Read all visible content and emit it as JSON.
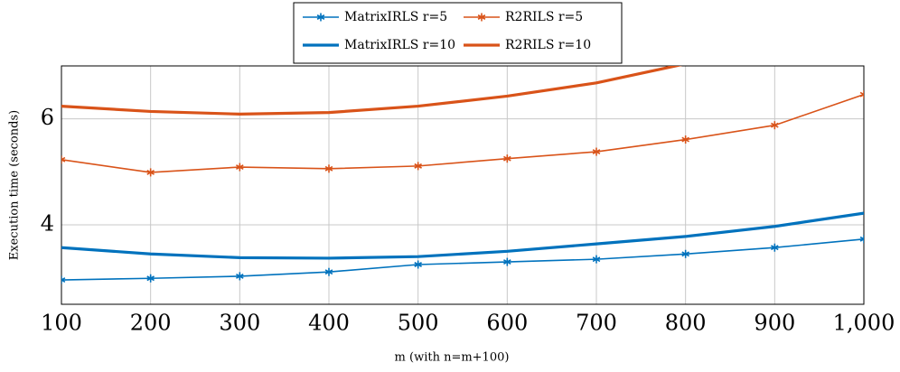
{
  "chart_data": {
    "type": "line",
    "xlabel": "m (with n=m+100)",
    "ylabel": "Execution time (seconds)",
    "x": [
      100,
      200,
      300,
      400,
      500,
      600,
      700,
      800,
      900,
      1000
    ],
    "series": [
      {
        "name": "MatrixIRLS r=5",
        "color": "#0072bd",
        "marker": "asterisk",
        "values": [
          2.96,
          2.99,
          3.03,
          3.11,
          3.25,
          3.3,
          3.35,
          3.45,
          3.57,
          3.73
        ]
      },
      {
        "name": "R2RILS r=5",
        "color": "#d95319",
        "marker": "asterisk",
        "values": [
          5.23,
          4.99,
          5.09,
          5.06,
          5.11,
          5.25,
          5.38,
          5.61,
          5.88,
          6.46
        ]
      },
      {
        "name": "MatrixIRLS r=10",
        "color": "#0072bd",
        "values": [
          3.57,
          3.45,
          3.38,
          3.37,
          3.4,
          3.5,
          3.64,
          3.78,
          3.97,
          4.22
        ]
      },
      {
        "name": "R2RILS r=10",
        "color": "#d95319",
        "values": [
          6.24,
          6.14,
          6.09,
          6.12,
          6.24,
          6.43,
          6.68,
          7.04,
          null,
          null
        ]
      }
    ],
    "xlim": [
      100,
      1000
    ],
    "xticks": [
      100,
      200,
      300,
      400,
      500,
      600,
      700,
      800,
      900,
      {
        "value": 1000,
        "label": "1,000"
      }
    ],
    "ylim": [
      2.5,
      7.0
    ],
    "yticks": [
      4,
      6
    ],
    "grid": true,
    "legend": "top"
  }
}
